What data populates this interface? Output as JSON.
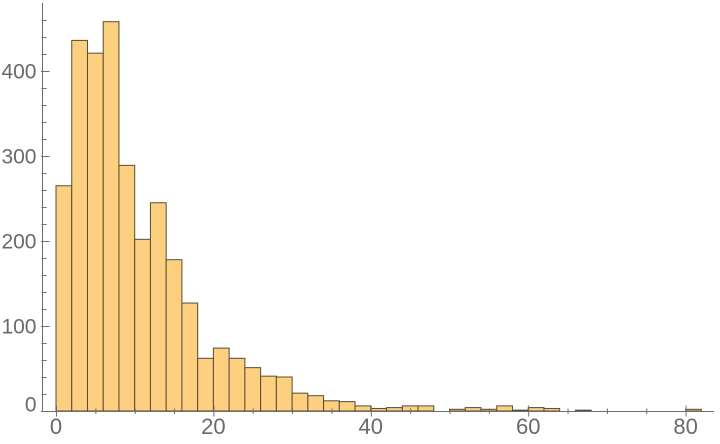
{
  "chart_data": {
    "type": "bar",
    "subtype": "histogram",
    "title": "",
    "xlabel": "",
    "ylabel": "",
    "bin_start": 0,
    "bin_width": 2,
    "counts": [
      265,
      436,
      421,
      458,
      289,
      202,
      245,
      178,
      127,
      62,
      74,
      62,
      51,
      41,
      40,
      21,
      18,
      12,
      11,
      6,
      3,
      4,
      6,
      6,
      0,
      2,
      4,
      2,
      6,
      1,
      4,
      3,
      0,
      1,
      0,
      0,
      0,
      0,
      0,
      0,
      2
    ],
    "x_ticks_major": [
      0,
      20,
      40,
      60,
      80
    ],
    "x_tick_labels": [
      "0",
      "20",
      "40",
      "60",
      "80"
    ],
    "x_tick_minor_step": 5,
    "x_tick_minor_max": 80,
    "y_ticks_major": [
      0,
      100,
      200,
      300,
      400
    ],
    "y_tick_labels": [
      "0",
      "100",
      "200",
      "300",
      "400"
    ],
    "y_tick_minor_step": 20,
    "y_tick_minor_max": 460,
    "xlim": [
      -1.8,
      84
    ],
    "ylim": [
      0,
      480
    ],
    "grid": false,
    "legend": false,
    "bar_fill_color": "#FCD07E",
    "bar_edge_color": "#564C3A",
    "axis_color": "#6E6E6E",
    "tick_label_color": "#696969",
    "background_color": "#FFFFFF"
  }
}
